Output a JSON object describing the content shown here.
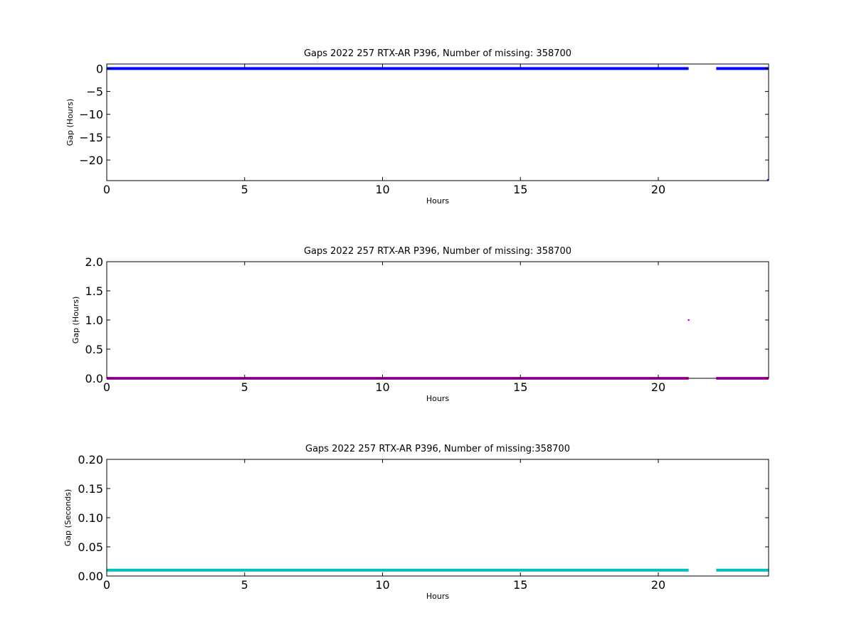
{
  "chart_data": [
    {
      "type": "scatter",
      "title": "Gaps 2022 257 RTX-AR  P396, Number of missing: 358700",
      "xlabel": "Hours",
      "ylabel": "Gap (Hours)",
      "xlim": [
        0,
        24
      ],
      "ylim": [
        -24.5,
        1
      ],
      "xticks": [
        0,
        5,
        10,
        15,
        20
      ],
      "yticks": [
        0,
        -5,
        -10,
        -15,
        -20
      ],
      "color": "#0000ff",
      "grid": false,
      "segments": [
        {
          "x_start": 0.0,
          "x_end": 21.1,
          "y": 0.0
        },
        {
          "x_start": 22.1,
          "x_end": 24.0,
          "y": 0.0
        }
      ],
      "points": [
        {
          "x": 24.0,
          "y": -24.4
        }
      ]
    },
    {
      "type": "scatter",
      "title": "Gaps 2022 257 RTX-AR  P396, Number of missing: 358700",
      "xlabel": "Hours",
      "ylabel": "Gap (Hours)",
      "xlim": [
        0,
        24
      ],
      "ylim": [
        0,
        2.0
      ],
      "xticks": [
        0,
        5,
        10,
        15,
        20
      ],
      "yticks": [
        0.0,
        0.5,
        1.0,
        1.5,
        2.0
      ],
      "color": "#bf00bf",
      "grid": false,
      "segments": [
        {
          "x_start": 0.0,
          "x_end": 21.1,
          "y": 0.0
        },
        {
          "x_start": 22.1,
          "x_end": 24.0,
          "y": 0.0
        }
      ],
      "points": [
        {
          "x": 21.1,
          "y": 1.0
        }
      ]
    },
    {
      "type": "scatter",
      "title": "Gaps 2022 257 RTX-AR  P396, Number of missing:358700",
      "xlabel": "Hours",
      "ylabel": "Gap (Seconds)",
      "xlim": [
        0,
        24
      ],
      "ylim": [
        0,
        0.2
      ],
      "xticks": [
        0,
        5,
        10,
        15,
        20
      ],
      "yticks": [
        0.0,
        0.05,
        0.1,
        0.15,
        0.2
      ],
      "color": "#00bfbf",
      "grid": false,
      "segments": [
        {
          "x_start": 0.0,
          "x_end": 21.1,
          "y": 0.01
        },
        {
          "x_start": 22.1,
          "x_end": 24.0,
          "y": 0.01
        }
      ],
      "points": []
    }
  ]
}
